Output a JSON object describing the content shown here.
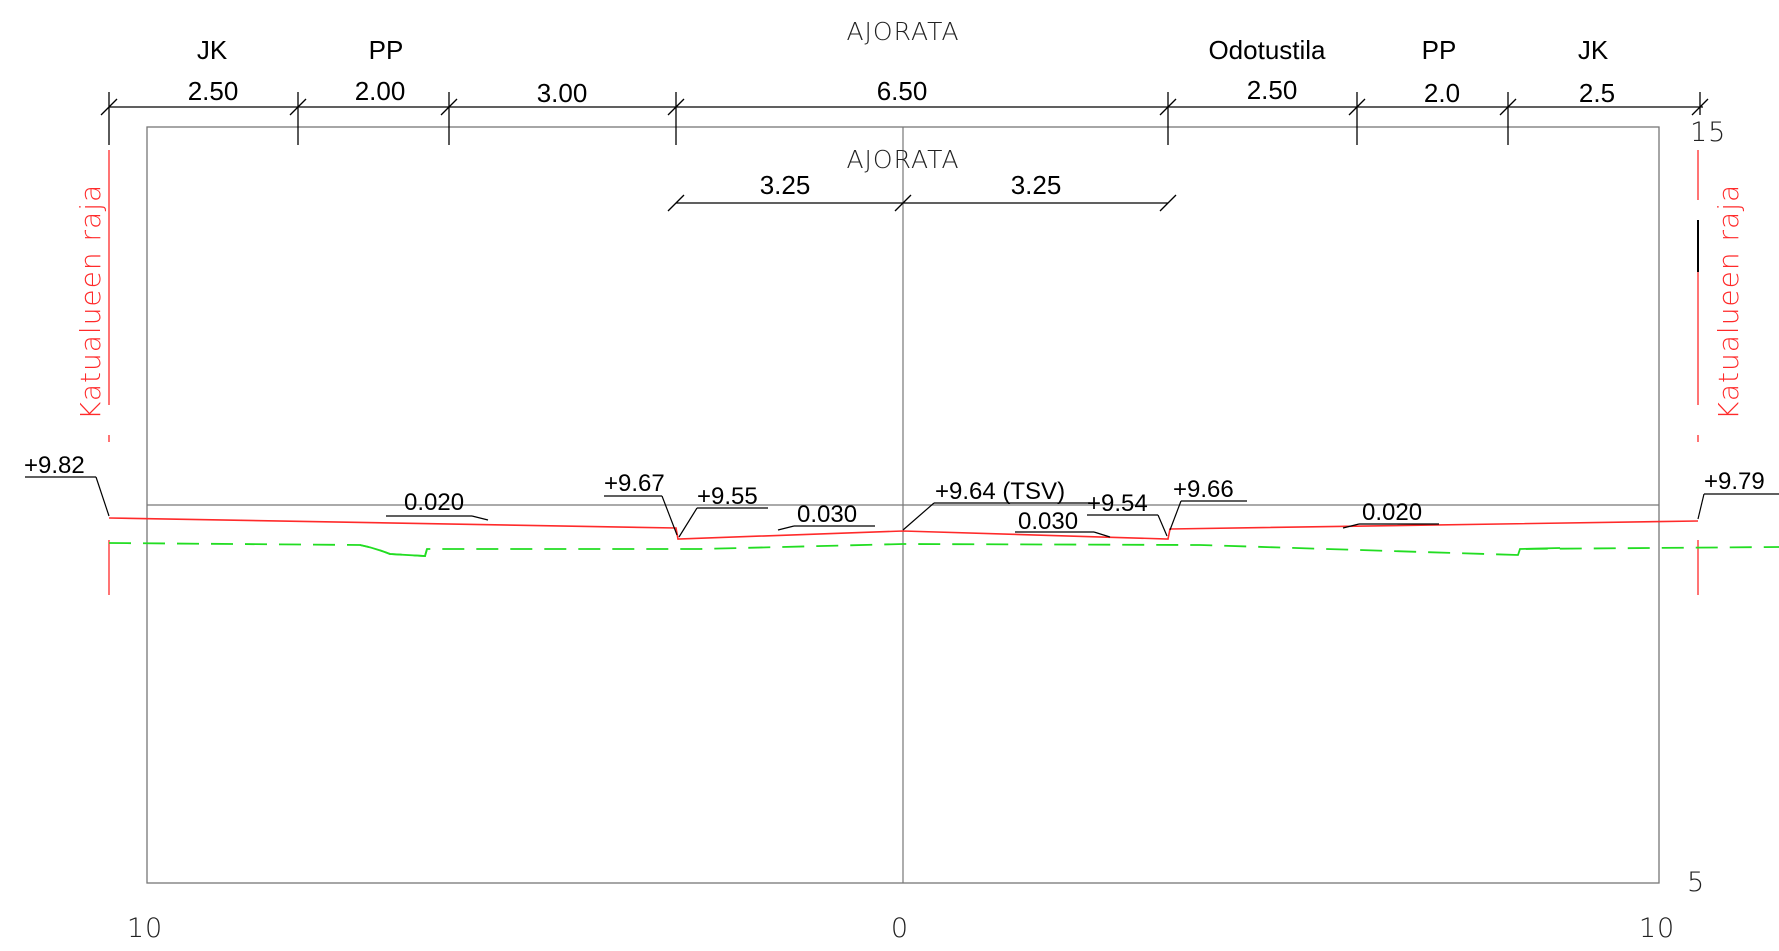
{
  "headers": {
    "top_title": "AJORATA",
    "inner_title": "AJORATA",
    "zones": [
      "JK",
      "PP",
      "Odotustila",
      "PP",
      "JK"
    ]
  },
  "dimensions_top": [
    "2.50",
    "2.00",
    "3.00",
    "6.50",
    "2.50",
    "2.0",
    "2.5"
  ],
  "dimensions_inner": [
    "3.25",
    "3.25"
  ],
  "boundary_labels": {
    "left": "Katualueen raja",
    "right": "Katualueen raja"
  },
  "elevations": {
    "left_edge": "+9.82",
    "left_curb_top": "+9.67",
    "left_curb_bottom": "+9.55",
    "center": "+9.64 (TSV)",
    "right_curb_bottom": "+9.54",
    "right_curb_top": "+9.66",
    "right_edge": "+9.79"
  },
  "slopes": [
    "0.020",
    "0.030",
    "0.030",
    "0.020"
  ],
  "axis": {
    "y_top": "15",
    "y_bottom": "5",
    "x_left": "10",
    "x_center": "0",
    "x_right": "10"
  },
  "colors": {
    "design_line": "#ff2a2a",
    "existing_ground": "#22dd22",
    "frame": "#777777",
    "dimension": "#000000"
  }
}
